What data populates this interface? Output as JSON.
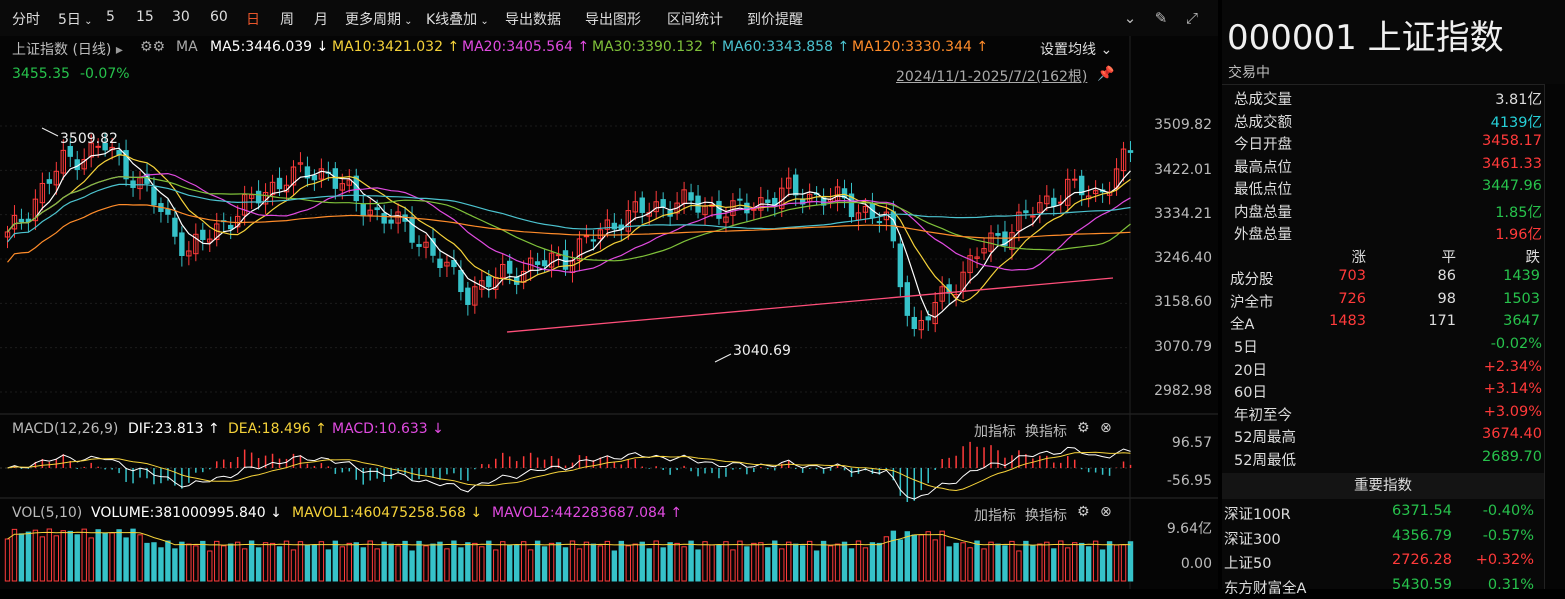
{
  "toolbar": {
    "items": [
      "分时",
      "5日",
      "5",
      "15",
      "30",
      "60",
      "日",
      "周",
      "月",
      "更多周期",
      "K线叠加",
      "导出数据",
      "导出图形",
      "区间统计",
      "到价提醒"
    ],
    "active": "日",
    "icons": [
      "chevron-circle-icon",
      "brush-icon",
      "expand-icon"
    ]
  },
  "main": {
    "index_label": "上证指数 (日线)",
    "ma_label": "MA",
    "ma_values": [
      {
        "text": "MA5:3446.039 ↓",
        "color": "#ffffff"
      },
      {
        "text": "MA10:3421.032 ↑",
        "color": "#f5d23a"
      },
      {
        "text": "MA20:3405.564 ↑",
        "color": "#e04be0"
      },
      {
        "text": "MA30:3390.132 ↑",
        "color": "#7fc13a"
      },
      {
        "text": "MA60:3343.858 ↑",
        "color": "#4cc3cf"
      },
      {
        "text": "MA120:3330.344 ↑",
        "color": "#ff8c2a"
      }
    ],
    "settings_label": "设置均线",
    "last_price": "3455.35",
    "last_change": "-0.07%",
    "range_label": "2024/11/1-2025/7/2(162根)",
    "y_ticks": [
      "3509.82",
      "3422.01",
      "3334.21",
      "3246.40",
      "3158.60",
      "3070.79",
      "2982.98"
    ],
    "y_min": 2982.98,
    "y_max": 3509.82,
    "high_label": "3509.82",
    "low_label": "3040.69",
    "bar_count": 162
  },
  "macd": {
    "title": "MACD(12,26,9)",
    "dif": "DIF:23.813 ↑",
    "dea": "DEA:18.496 ↑",
    "macd": "MACD:10.633 ↓",
    "add_indicator": "加指标",
    "switch_indicator": "换指标",
    "y_top": "96.57",
    "y_bottom": "-56.95"
  },
  "vol": {
    "title": "VOL(5,10)",
    "volume": "VOLUME:381000995.840 ↓",
    "mavol1": "MAVOL1:460475258.568 ↓",
    "mavol2": "MAVOL2:442283687.084 ↑",
    "add_indicator": "加指标",
    "switch_indicator": "换指标",
    "y_top": "9.64亿",
    "y_bottom": "0.00"
  },
  "panel": {
    "code": "000001",
    "name": "上证指数",
    "status": "交易中",
    "stats": [
      {
        "label": "总成交量",
        "value": "3.81亿",
        "color": "white"
      },
      {
        "label": "总成交额",
        "value": "4139亿",
        "color": "cyan"
      },
      {
        "label": "今日开盘",
        "value": "3458.17",
        "color": "red"
      },
      {
        "label": "最高点位",
        "value": "3461.33",
        "color": "red"
      },
      {
        "label": "最低点位",
        "value": "3447.96",
        "color": "green"
      },
      {
        "label": "内盘总量",
        "value": "1.85亿",
        "color": "green"
      },
      {
        "label": "外盘总量",
        "value": "1.96亿",
        "color": "red"
      }
    ],
    "breadth_header": [
      "涨",
      "平",
      "跌"
    ],
    "breadth": [
      {
        "label": "成分股",
        "up": "703",
        "flat": "86",
        "down": "1439"
      },
      {
        "label": "沪全市",
        "up": "726",
        "flat": "98",
        "down": "1503"
      },
      {
        "label": "全A",
        "up": "1483",
        "flat": "171",
        "down": "3647"
      }
    ],
    "periods": [
      {
        "label": "5日",
        "value": "-0.02%",
        "color": "green"
      },
      {
        "label": "20日",
        "value": "+2.34%",
        "color": "red"
      },
      {
        "label": "60日",
        "value": "+3.14%",
        "color": "red"
      },
      {
        "label": "年初至今",
        "value": "+3.09%",
        "color": "red"
      },
      {
        "label": "52周最高",
        "value": "3674.40",
        "color": "red"
      },
      {
        "label": "52周最低",
        "value": "2689.70",
        "color": "green"
      }
    ],
    "important_title": "重要指数",
    "indices": [
      {
        "name": "深证100R",
        "price": "6371.54",
        "chg": "-0.40%",
        "color": "green"
      },
      {
        "name": "深证300",
        "price": "4356.79",
        "chg": "-0.57%",
        "color": "green"
      },
      {
        "name": "上证50",
        "price": "2726.28",
        "chg": "+0.32%",
        "color": "red"
      },
      {
        "name": "东方财富全A",
        "price": "5430.59",
        "chg": "0.31%",
        "color": "green"
      }
    ]
  }
}
